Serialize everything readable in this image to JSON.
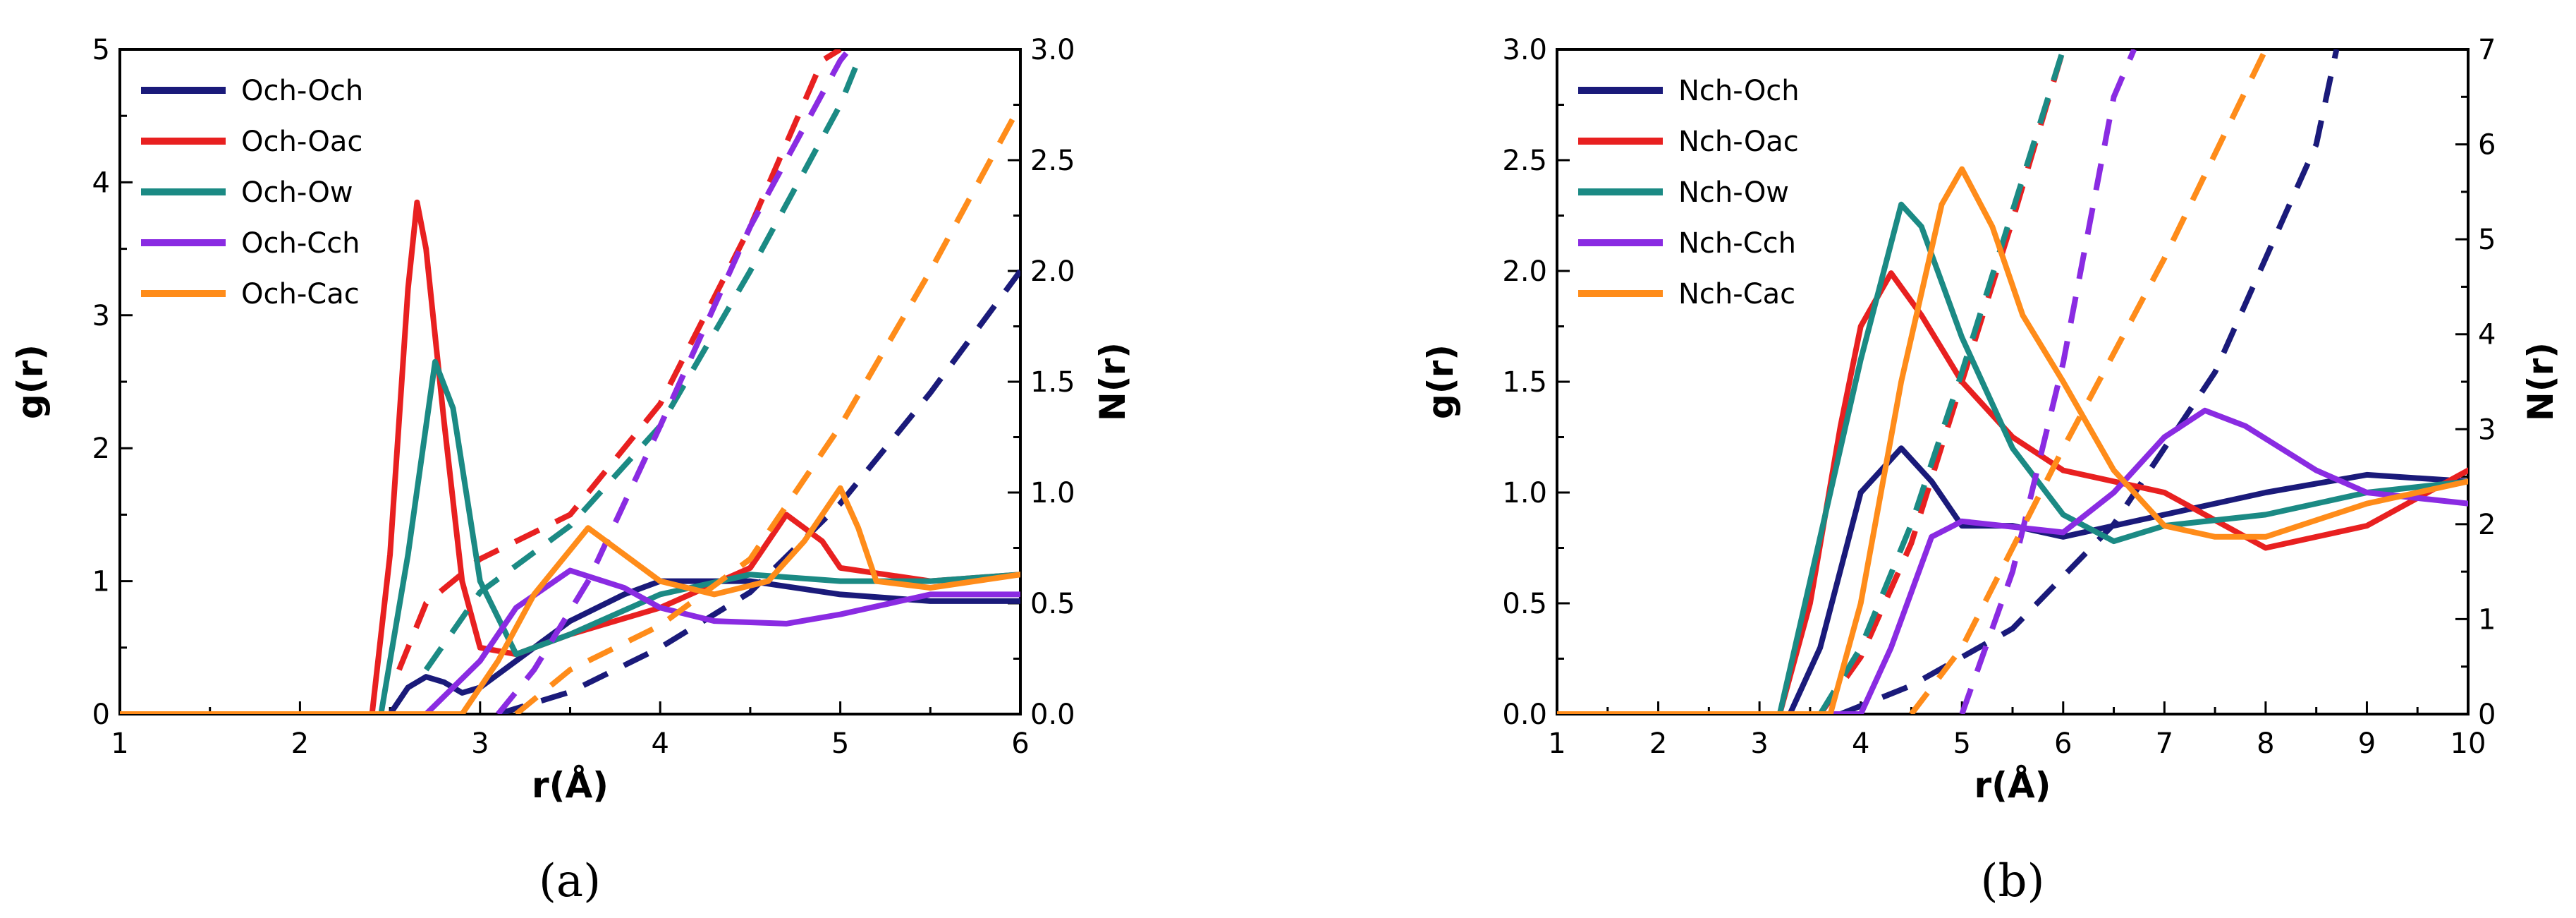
{
  "chart_data": [
    {
      "type": "line",
      "panel_label": "(a)",
      "xlabel": "r(Å)",
      "ylabel": "g(r)",
      "y2label": "N(r)",
      "xlim": [
        1,
        6
      ],
      "ylim": [
        0,
        5
      ],
      "y2lim": [
        0,
        3
      ],
      "xticks": [
        "1",
        "2",
        "3",
        "4",
        "5",
        "6"
      ],
      "yticks": [
        "0",
        "1",
        "2",
        "3",
        "4",
        "5"
      ],
      "y2ticks": [
        "0.0",
        "0.5",
        "1.0",
        "1.5",
        "2.0",
        "2.5",
        "3.0"
      ],
      "legend_position": "top-left",
      "series": [
        {
          "name": "Och-Och",
          "color": "#1a1a7a",
          "gr": [
            [
              1,
              0
            ],
            [
              2.5,
              0
            ],
            [
              2.6,
              0.2
            ],
            [
              2.7,
              0.28
            ],
            [
              2.8,
              0.24
            ],
            [
              2.9,
              0.16
            ],
            [
              3.0,
              0.2
            ],
            [
              3.2,
              0.4
            ],
            [
              3.5,
              0.7
            ],
            [
              3.8,
              0.9
            ],
            [
              4.0,
              1.0
            ],
            [
              4.5,
              1.0
            ],
            [
              5.0,
              0.9
            ],
            [
              5.5,
              0.85
            ],
            [
              6.0,
              0.85
            ]
          ],
          "nr": [
            [
              3.1,
              0.0
            ],
            [
              3.5,
              0.1
            ],
            [
              4.0,
              0.3
            ],
            [
              4.5,
              0.55
            ],
            [
              5.0,
              0.95
            ],
            [
              5.5,
              1.45
            ],
            [
              6.0,
              2.0
            ]
          ]
        },
        {
          "name": "Och-Oac",
          "color": "#e82020",
          "gr": [
            [
              1,
              0
            ],
            [
              2.4,
              0
            ],
            [
              2.5,
              1.2
            ],
            [
              2.6,
              3.2
            ],
            [
              2.65,
              3.85
            ],
            [
              2.7,
              3.5
            ],
            [
              2.8,
              2.2
            ],
            [
              2.9,
              1.0
            ],
            [
              3.0,
              0.5
            ],
            [
              3.2,
              0.45
            ],
            [
              3.5,
              0.6
            ],
            [
              4.0,
              0.8
            ],
            [
              4.5,
              1.1
            ],
            [
              4.7,
              1.5
            ],
            [
              4.9,
              1.3
            ],
            [
              5.0,
              1.1
            ],
            [
              5.5,
              1.0
            ],
            [
              6.0,
              1.05
            ]
          ],
          "nr": [
            [
              2.55,
              0.2
            ],
            [
              2.7,
              0.5
            ],
            [
              3.0,
              0.7
            ],
            [
              3.5,
              0.9
            ],
            [
              4.0,
              1.4
            ],
            [
              4.5,
              2.2
            ],
            [
              4.9,
              2.95
            ],
            [
              5.0,
              3.0
            ]
          ]
        },
        {
          "name": "Och-Ow",
          "color": "#1b8a84",
          "gr": [
            [
              1,
              0
            ],
            [
              2.45,
              0
            ],
            [
              2.6,
              1.2
            ],
            [
              2.75,
              2.65
            ],
            [
              2.85,
              2.3
            ],
            [
              3.0,
              1.0
            ],
            [
              3.2,
              0.45
            ],
            [
              3.5,
              0.6
            ],
            [
              4.0,
              0.9
            ],
            [
              4.5,
              1.05
            ],
            [
              5.0,
              1.0
            ],
            [
              5.5,
              1.0
            ],
            [
              6.0,
              1.05
            ]
          ],
          "nr": [
            [
              2.7,
              0.2
            ],
            [
              3.0,
              0.55
            ],
            [
              3.5,
              0.85
            ],
            [
              4.0,
              1.3
            ],
            [
              4.5,
              2.0
            ],
            [
              5.0,
              2.75
            ],
            [
              5.1,
              2.95
            ]
          ]
        },
        {
          "name": "Och-Cch",
          "color": "#8a2be2",
          "gr": [
            [
              1,
              0
            ],
            [
              2.7,
              0
            ],
            [
              3.0,
              0.4
            ],
            [
              3.2,
              0.8
            ],
            [
              3.5,
              1.08
            ],
            [
              3.8,
              0.95
            ],
            [
              4.0,
              0.8
            ],
            [
              4.3,
              0.7
            ],
            [
              4.7,
              0.68
            ],
            [
              5.0,
              0.75
            ],
            [
              5.5,
              0.9
            ],
            [
              6.0,
              0.9
            ]
          ],
          "nr": [
            [
              3.1,
              0.0
            ],
            [
              3.3,
              0.2
            ],
            [
              3.6,
              0.6
            ],
            [
              4.0,
              1.3
            ],
            [
              4.5,
              2.2
            ],
            [
              5.0,
              2.95
            ],
            [
              5.05,
              3.0
            ]
          ]
        },
        {
          "name": "Och-Cac",
          "color": "#ff8c1a",
          "gr": [
            [
              1,
              0
            ],
            [
              2.9,
              0
            ],
            [
              3.1,
              0.4
            ],
            [
              3.3,
              0.9
            ],
            [
              3.6,
              1.4
            ],
            [
              3.8,
              1.2
            ],
            [
              4.0,
              1.0
            ],
            [
              4.3,
              0.9
            ],
            [
              4.6,
              1.0
            ],
            [
              4.8,
              1.3
            ],
            [
              5.0,
              1.7
            ],
            [
              5.1,
              1.4
            ],
            [
              5.2,
              1.0
            ],
            [
              5.5,
              0.95
            ],
            [
              6.0,
              1.05
            ]
          ],
          "nr": [
            [
              3.2,
              0.0
            ],
            [
              3.5,
              0.2
            ],
            [
              4.0,
              0.4
            ],
            [
              4.5,
              0.7
            ],
            [
              5.0,
              1.3
            ],
            [
              5.5,
              2.0
            ],
            [
              6.0,
              2.75
            ]
          ]
        }
      ]
    },
    {
      "type": "line",
      "panel_label": "(b)",
      "xlabel": "r(Å)",
      "ylabel": "g(r)",
      "y2label": "N(r)",
      "xlim": [
        1,
        10
      ],
      "ylim": [
        0,
        3
      ],
      "y2lim": [
        0,
        7
      ],
      "xticks": [
        "1",
        "2",
        "3",
        "4",
        "5",
        "6",
        "7",
        "8",
        "9",
        "10"
      ],
      "yticks": [
        "0.0",
        "0.5",
        "1.0",
        "1.5",
        "2.0",
        "2.5",
        "3.0"
      ],
      "y2ticks": [
        "0",
        "1",
        "2",
        "3",
        "4",
        "5",
        "6",
        "7"
      ],
      "legend_position": "top-left",
      "series": [
        {
          "name": "Nch-Och",
          "color": "#1a1a7a",
          "gr": [
            [
              1,
              0
            ],
            [
              3.3,
              0
            ],
            [
              3.6,
              0.3
            ],
            [
              4.0,
              1.0
            ],
            [
              4.4,
              1.2
            ],
            [
              4.7,
              1.05
            ],
            [
              5.0,
              0.85
            ],
            [
              5.5,
              0.85
            ],
            [
              6.0,
              0.8
            ],
            [
              7.0,
              0.9
            ],
            [
              8.0,
              1.0
            ],
            [
              9.0,
              1.08
            ],
            [
              10.0,
              1.05
            ]
          ],
          "nr": [
            [
              3.8,
              0.0
            ],
            [
              4.5,
              0.3
            ],
            [
              5.5,
              0.9
            ],
            [
              6.5,
              2.0
            ],
            [
              7.5,
              3.6
            ],
            [
              8.5,
              6.0
            ],
            [
              8.7,
              7.0
            ]
          ]
        },
        {
          "name": "Nch-Oac",
          "color": "#e82020",
          "gr": [
            [
              1,
              0
            ],
            [
              3.2,
              0
            ],
            [
              3.5,
              0.5
            ],
            [
              3.8,
              1.3
            ],
            [
              4.0,
              1.75
            ],
            [
              4.3,
              1.99
            ],
            [
              4.6,
              1.8
            ],
            [
              5.0,
              1.5
            ],
            [
              5.5,
              1.25
            ],
            [
              6.0,
              1.1
            ],
            [
              7.0,
              1.0
            ],
            [
              8.0,
              0.75
            ],
            [
              9.0,
              0.85
            ],
            [
              10.0,
              1.1
            ]
          ],
          "nr": [
            [
              3.6,
              0.0
            ],
            [
              4.0,
              0.6
            ],
            [
              4.5,
              1.8
            ],
            [
              5.0,
              3.5
            ],
            [
              5.5,
              5.2
            ],
            [
              6.0,
              7.0
            ]
          ]
        },
        {
          "name": "Nch-Ow",
          "color": "#1b8a84",
          "gr": [
            [
              1,
              0
            ],
            [
              3.2,
              0
            ],
            [
              3.5,
              0.6
            ],
            [
              4.0,
              1.6
            ],
            [
              4.4,
              2.3
            ],
            [
              4.6,
              2.2
            ],
            [
              5.0,
              1.7
            ],
            [
              5.5,
              1.2
            ],
            [
              6.0,
              0.9
            ],
            [
              6.5,
              0.78
            ],
            [
              7.0,
              0.85
            ],
            [
              8.0,
              0.9
            ],
            [
              9.0,
              1.0
            ],
            [
              10.0,
              1.05
            ]
          ],
          "nr": [
            [
              3.6,
              0.0
            ],
            [
              4.0,
              0.7
            ],
            [
              4.5,
              2.0
            ],
            [
              5.0,
              3.6
            ],
            [
              5.5,
              5.3
            ],
            [
              6.0,
              7.0
            ]
          ]
        },
        {
          "name": "Nch-Cch",
          "color": "#8a2be2",
          "gr": [
            [
              1,
              0
            ],
            [
              4.0,
              0
            ],
            [
              4.3,
              0.3
            ],
            [
              4.7,
              0.8
            ],
            [
              5.0,
              0.87
            ],
            [
              6.0,
              0.82
            ],
            [
              6.5,
              1.0
            ],
            [
              7.0,
              1.25
            ],
            [
              7.4,
              1.37
            ],
            [
              7.8,
              1.3
            ],
            [
              8.5,
              1.1
            ],
            [
              9.0,
              1.0
            ],
            [
              10.0,
              0.95
            ]
          ],
          "nr": [
            [
              5.0,
              0.0
            ],
            [
              5.5,
              1.5
            ],
            [
              6.0,
              3.7
            ],
            [
              6.5,
              6.5
            ],
            [
              6.7,
              7.0
            ]
          ]
        },
        {
          "name": "Nch-Cac",
          "color": "#ff8c1a",
          "gr": [
            [
              1,
              0
            ],
            [
              3.7,
              0
            ],
            [
              4.0,
              0.5
            ],
            [
              4.4,
              1.5
            ],
            [
              4.8,
              2.3
            ],
            [
              5.0,
              2.46
            ],
            [
              5.3,
              2.2
            ],
            [
              5.6,
              1.8
            ],
            [
              6.0,
              1.5
            ],
            [
              6.5,
              1.1
            ],
            [
              7.0,
              0.85
            ],
            [
              7.5,
              0.8
            ],
            [
              8.0,
              0.8
            ],
            [
              9.0,
              0.95
            ],
            [
              10.0,
              1.05
            ]
          ],
          "nr": [
            [
              4.5,
              0.0
            ],
            [
              5.0,
              0.7
            ],
            [
              6.0,
              2.8
            ],
            [
              7.0,
              4.8
            ],
            [
              8.0,
              7.0
            ]
          ]
        }
      ]
    }
  ]
}
